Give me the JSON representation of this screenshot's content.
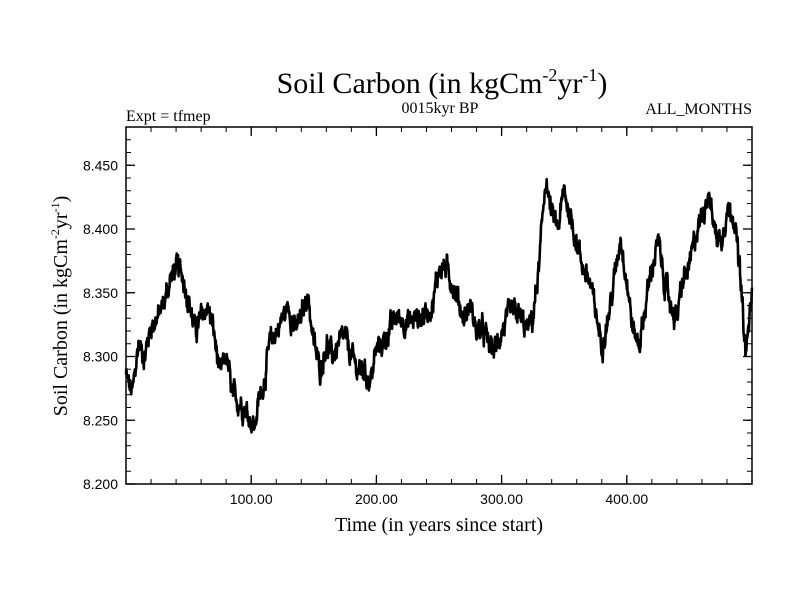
{
  "chart_data": {
    "type": "line",
    "title": {
      "base": "Soil Carbon (in kgCm",
      "sup1": "-2",
      "mid": "yr",
      "sup2": "-1",
      "end": ")"
    },
    "header_left": "Expt = tfmep",
    "header_center": "0015kyr BP",
    "header_right": "ALL_MONTHS",
    "ylabel": {
      "base": "Soil Carbon (in kgCm",
      "sup1": "-2",
      "mid": "yr",
      "sup2": "-1",
      "end": ")"
    },
    "xlabel": "Time (in years since start)",
    "xlim": [
      0,
      500
    ],
    "ylim": [
      8.2,
      8.48
    ],
    "x_ticks": [
      {
        "value": 100,
        "label": "100.00"
      },
      {
        "value": 200,
        "label": "200.00"
      },
      {
        "value": 300,
        "label": "300.00"
      },
      {
        "value": 400,
        "label": "400.00"
      }
    ],
    "y_ticks": [
      {
        "value": 8.2,
        "label": "8.200"
      },
      {
        "value": 8.25,
        "label": "8.250"
      },
      {
        "value": 8.3,
        "label": "8.300"
      },
      {
        "value": 8.35,
        "label": "8.350"
      },
      {
        "value": 8.4,
        "label": "8.400"
      },
      {
        "value": 8.45,
        "label": "8.450"
      }
    ],
    "series": [
      {
        "color": "#000000",
        "x": [
          0,
          5,
          10,
          15,
          20,
          25,
          30,
          35,
          40,
          45,
          50,
          55,
          60,
          65,
          70,
          75,
          80,
          85,
          90,
          95,
          100,
          103,
          105,
          110,
          115,
          120,
          125,
          130,
          135,
          140,
          145,
          150,
          155,
          160,
          165,
          170,
          175,
          180,
          185,
          190,
          195,
          200,
          205,
          210,
          215,
          220,
          225,
          230,
          235,
          240,
          245,
          250,
          255,
          260,
          265,
          270,
          275,
          280,
          285,
          290,
          295,
          300,
          305,
          310,
          315,
          320,
          325,
          330,
          335,
          340,
          345,
          350,
          355,
          360,
          365,
          370,
          375,
          380,
          385,
          390,
          395,
          400,
          405,
          410,
          415,
          420,
          425,
          430,
          435,
          440,
          445,
          450,
          455,
          460,
          465,
          470,
          475,
          480,
          485,
          490,
          495,
          500
        ],
        "y": [
          8.285,
          8.27,
          8.31,
          8.3,
          8.325,
          8.33,
          8.34,
          8.36,
          8.37,
          8.365,
          8.345,
          8.32,
          8.33,
          8.34,
          8.32,
          8.285,
          8.3,
          8.27,
          8.265,
          8.26,
          8.25,
          8.245,
          8.26,
          8.28,
          8.31,
          8.32,
          8.33,
          8.34,
          8.32,
          8.33,
          8.35,
          8.31,
          8.29,
          8.31,
          8.3,
          8.31,
          8.315,
          8.3,
          8.29,
          8.29,
          8.28,
          8.305,
          8.31,
          8.32,
          8.33,
          8.33,
          8.325,
          8.33,
          8.33,
          8.335,
          8.34,
          8.37,
          8.37,
          8.36,
          8.345,
          8.33,
          8.34,
          8.32,
          8.32,
          8.31,
          8.305,
          8.32,
          8.33,
          8.335,
          8.33,
          8.32,
          8.33,
          8.37,
          8.44,
          8.41,
          8.4,
          8.43,
          8.41,
          8.39,
          8.37,
          8.36,
          8.335,
          8.31,
          8.33,
          8.36,
          8.395,
          8.36,
          8.32,
          8.31,
          8.34,
          8.37,
          8.39,
          8.36,
          8.34,
          8.33,
          8.36,
          8.37,
          8.395,
          8.41,
          8.43,
          8.4,
          8.39,
          8.415,
          8.415,
          8.37,
          8.3,
          8.35
        ]
      }
    ]
  }
}
